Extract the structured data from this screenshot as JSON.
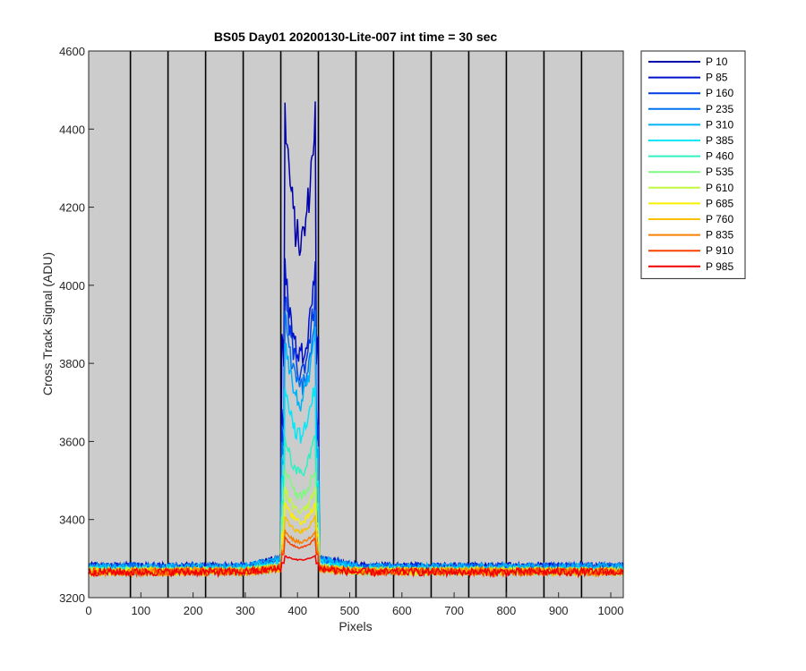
{
  "chart_data": {
    "type": "line",
    "title": "BS05 Day01 20200130-Lite-007 int time = 30 sec",
    "xlabel": "Pixels",
    "ylabel": "Cross Track Signal (ADU)",
    "xlim": [
      0,
      1024
    ],
    "ylim": [
      3200,
      4600
    ],
    "xticks": [
      0,
      100,
      200,
      300,
      400,
      500,
      600,
      700,
      800,
      900,
      1000
    ],
    "yticks": [
      3200,
      3400,
      3600,
      3800,
      4000,
      4200,
      4400,
      4600
    ],
    "background_color": "#cccccc",
    "grid": false,
    "vertical_lines_x": [
      80,
      152,
      224,
      296,
      368,
      440,
      512,
      584,
      656,
      728,
      800,
      872,
      944
    ],
    "legend_position": "outside-top-right",
    "baseline": 3272,
    "bump_range": [
      370,
      440
    ],
    "series": [
      {
        "name": "P 10",
        "color": "#0000aa",
        "peak": 4560
      },
      {
        "name": "P 85",
        "color": "#0010c8",
        "peak": 4120
      },
      {
        "name": "P 160",
        "color": "#0038e6",
        "peak": 4050
      },
      {
        "name": "P 235",
        "color": "#0074f0",
        "peak": 3990
      },
      {
        "name": "P 310",
        "color": "#00b4f8",
        "peak": 3930
      },
      {
        "name": "P 385",
        "color": "#00e8f8",
        "peak": 3800
      },
      {
        "name": "P 460",
        "color": "#30f0c0",
        "peak": 3650
      },
      {
        "name": "P 535",
        "color": "#80f880",
        "peak": 3560
      },
      {
        "name": "P 610",
        "color": "#c0f840",
        "peak": 3500
      },
      {
        "name": "P 685",
        "color": "#f8f000",
        "peak": 3460
      },
      {
        "name": "P 760",
        "color": "#f8c000",
        "peak": 3420
      },
      {
        "name": "P 835",
        "color": "#f88000",
        "peak": 3380
      },
      {
        "name": "P 910",
        "color": "#f84000",
        "peak": 3360
      },
      {
        "name": "P 985",
        "color": "#f00000",
        "peak": 3310
      }
    ]
  }
}
